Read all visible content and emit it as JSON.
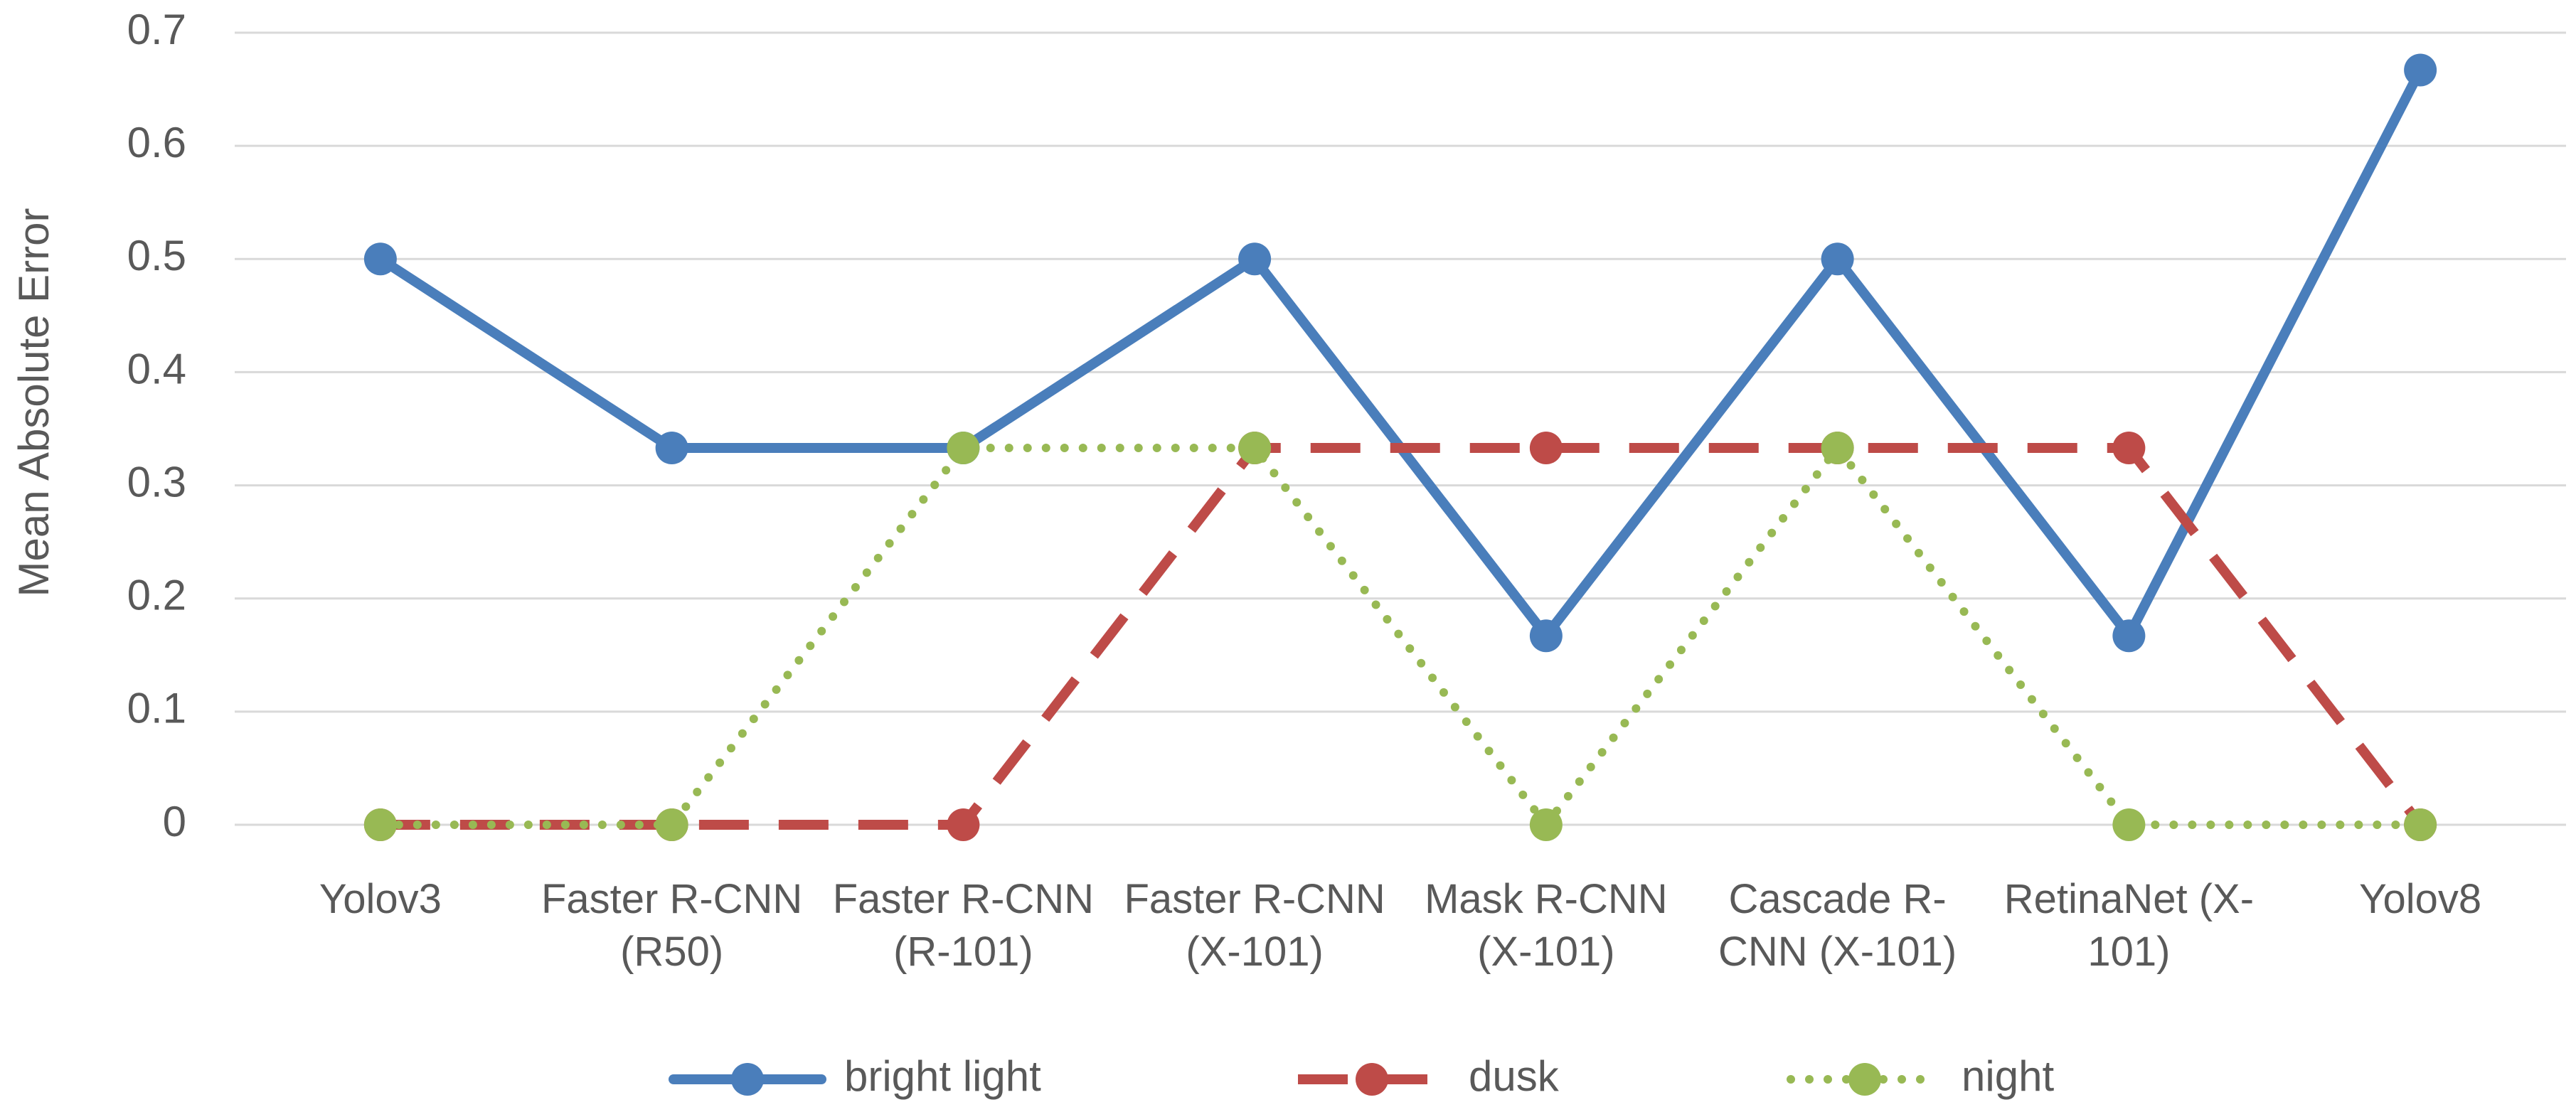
{
  "chart_data": {
    "type": "line",
    "y_label": "Mean Absolute Error",
    "categories": [
      "Yolov3",
      "Faster R-CNN (R50)",
      "Faster R-CNN (R-101)",
      "Faster R-CNN (X-101)",
      "Mask R-CNN (X-101)",
      "Cascade R-CNN (X-101)",
      "RetinaNet (X-101)",
      "Yolov8"
    ],
    "series": [
      {
        "name": "bright light",
        "color": "#4a7ebb",
        "style": "solid",
        "values": [
          0.5,
          0.333,
          0.333,
          0.5,
          0.167,
          0.5,
          0.167,
          0.667
        ]
      },
      {
        "name": "dusk",
        "color": "#be4b48",
        "style": "dashed",
        "values": [
          0,
          0,
          0,
          0.333,
          0.333,
          0.333,
          0.333,
          0
        ]
      },
      {
        "name": "night",
        "color": "#98b954",
        "style": "dotted",
        "values": [
          0,
          0,
          0.333,
          0.333,
          0,
          0.333,
          0,
          0
        ]
      }
    ],
    "ylim": [
      0,
      0.7
    ],
    "yticks": [
      0,
      0.1,
      0.2,
      0.3,
      0.4,
      0.5,
      0.6,
      0.7
    ],
    "grid": true,
    "legend": "bottom"
  }
}
